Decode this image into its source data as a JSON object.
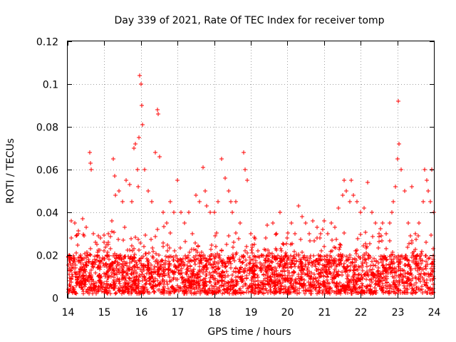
{
  "chart_data": {
    "type": "scatter",
    "title": "Day 339 of 2021, Rate Of TEC Index for receiver tomp",
    "xlabel": "GPS time / hours",
    "ylabel": "ROTI / TECUs",
    "xlim": [
      14,
      24
    ],
    "ylim": [
      0,
      0.12
    ],
    "xticks": [
      14,
      15,
      16,
      17,
      18,
      19,
      20,
      21,
      22,
      23,
      24
    ],
    "xtick_labels": [
      "14",
      "15",
      "16",
      "17",
      "18",
      "19",
      "20",
      "21",
      "22",
      "23",
      "24"
    ],
    "yticks": [
      0,
      0.02,
      0.04,
      0.06,
      0.08,
      0.1,
      0.12
    ],
    "ytick_labels": [
      "0",
      "0.02",
      "0.04",
      "0.06",
      "0.08",
      "0.1",
      "0.12"
    ],
    "grid": true,
    "marker": "+",
    "color": "#ff0000",
    "background_band": {
      "x_range": [
        14,
        24
      ],
      "y_range": [
        0.002,
        0.02
      ],
      "density": "dense"
    },
    "series": [
      {
        "name": "ROTI",
        "x": [
          14.1,
          14.2,
          14.3,
          14.4,
          14.5,
          14.6,
          14.62,
          14.65,
          14.7,
          14.8,
          14.9,
          15.0,
          15.1,
          15.2,
          15.25,
          15.28,
          15.3,
          15.4,
          15.5,
          15.6,
          15.7,
          15.75,
          15.8,
          15.85,
          15.9,
          15.92,
          15.95,
          15.97,
          16.0,
          16.02,
          16.05,
          16.1,
          16.2,
          16.3,
          16.4,
          16.45,
          16.48,
          16.5,
          16.6,
          16.7,
          16.8,
          16.9,
          17.0,
          17.1,
          17.2,
          17.3,
          17.4,
          17.5,
          17.6,
          17.7,
          17.75,
          17.8,
          17.9,
          18.0,
          18.1,
          18.2,
          18.3,
          18.4,
          18.45,
          18.5,
          18.6,
          18.7,
          18.8,
          18.85,
          18.9,
          19.0,
          19.1,
          19.2,
          19.3,
          19.4,
          19.5,
          19.6,
          19.7,
          19.8,
          19.9,
          20.0,
          20.1,
          20.2,
          20.3,
          20.4,
          20.5,
          20.6,
          20.7,
          20.8,
          20.9,
          21.0,
          21.1,
          21.2,
          21.3,
          21.4,
          21.5,
          21.55,
          21.6,
          21.7,
          21.75,
          21.8,
          21.9,
          22.0,
          22.1,
          22.2,
          22.3,
          22.4,
          22.5,
          22.6,
          22.7,
          22.8,
          22.85,
          22.9,
          22.95,
          23.0,
          23.02,
          23.05,
          23.1,
          23.2,
          23.3,
          23.4,
          23.5,
          23.6,
          23.7,
          23.75,
          23.8,
          23.85,
          23.9,
          23.95,
          24.0
        ],
        "y": [
          0.036,
          0.035,
          0.03,
          0.037,
          0.033,
          0.068,
          0.063,
          0.06,
          0.03,
          0.025,
          0.028,
          0.022,
          0.03,
          0.036,
          0.065,
          0.057,
          0.048,
          0.05,
          0.045,
          0.055,
          0.053,
          0.045,
          0.07,
          0.072,
          0.06,
          0.052,
          0.075,
          0.104,
          0.1,
          0.09,
          0.081,
          0.06,
          0.05,
          0.045,
          0.068,
          0.088,
          0.086,
          0.066,
          0.04,
          0.035,
          0.045,
          0.04,
          0.055,
          0.04,
          0.035,
          0.04,
          0.03,
          0.048,
          0.045,
          0.061,
          0.05,
          0.043,
          0.04,
          0.04,
          0.045,
          0.065,
          0.056,
          0.05,
          0.045,
          0.04,
          0.045,
          0.035,
          0.068,
          0.06,
          0.055,
          0.03,
          0.025,
          0.022,
          0.02,
          0.028,
          0.021,
          0.035,
          0.03,
          0.04,
          0.025,
          0.028,
          0.035,
          0.03,
          0.043,
          0.038,
          0.035,
          0.03,
          0.036,
          0.033,
          0.03,
          0.036,
          0.03,
          0.035,
          0.033,
          0.042,
          0.048,
          0.055,
          0.05,
          0.045,
          0.055,
          0.048,
          0.045,
          0.04,
          0.042,
          0.054,
          0.04,
          0.035,
          0.03,
          0.035,
          0.03,
          0.035,
          0.04,
          0.045,
          0.052,
          0.065,
          0.092,
          0.072,
          0.06,
          0.05,
          0.035,
          0.052,
          0.03,
          0.035,
          0.045,
          0.06,
          0.055,
          0.05,
          0.045,
          0.06,
          0.04
        ]
      }
    ]
  }
}
